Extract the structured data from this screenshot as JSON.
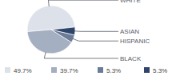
{
  "chart_data": {
    "type": "pie",
    "categories": [
      "WHITE",
      "BLACK",
      "HISPANIC",
      "ASIAN"
    ],
    "values": [
      49.7,
      39.7,
      5.3,
      5.3
    ],
    "value_labels": [
      "49.7%",
      "39.7%",
      "5.3%",
      "5.3%"
    ],
    "colors": [
      "#dde1e9",
      "#a4afc2",
      "#6b7c98",
      "#2f4469"
    ]
  }
}
